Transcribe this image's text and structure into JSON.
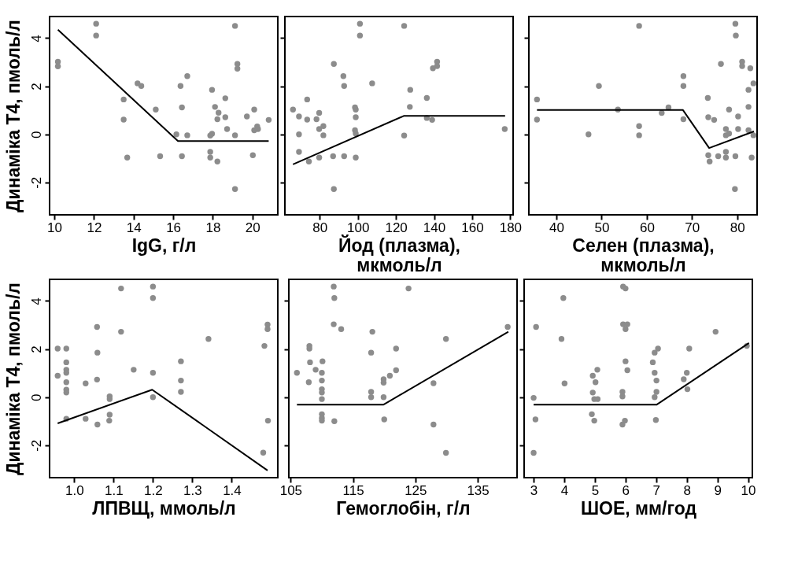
{
  "chart_data": [
    {
      "type": "scatter",
      "xlabel": "IgG, г/л",
      "ylabel": "Динаміка T4, пмоль/л",
      "xlim": [
        9.76,
        21.28
      ],
      "xticks": [
        10,
        12,
        14,
        16,
        18,
        20
      ],
      "ylim": [
        -3.35,
        4.9
      ],
      "yticks": [
        -2,
        0,
        2,
        4
      ],
      "series": [
        {
          "marker": "circle",
          "color": "#8c8c8c",
          "x": [
            10.18,
            10.18,
            12.11,
            12.11,
            13.5,
            13.5,
            13.68,
            14.2,
            14.39,
            15.12,
            15.34,
            16.16,
            16.37,
            16.44,
            16.44,
            16.71,
            16.71,
            17.87,
            17.96,
            17.96,
            17.87,
            17.87,
            18.11,
            18.29,
            18.23,
            18.23,
            18.63,
            18.63,
            18.72,
            19.12,
            19.12,
            19.12,
            19.24,
            19.24,
            19.72,
            20.09,
            20.02,
            20.09,
            20.24,
            20.28,
            20.82
          ],
          "values": [
            3.02,
            2.83,
            4.6,
            4.11,
            1.45,
            0.61,
            -0.97,
            2.12,
            2.01,
            1.03,
            -0.91,
            0,
            2.01,
            1.12,
            -0.91,
            2.42,
            -0.04,
            -0.05,
            0.02,
            1.85,
            -0.73,
            -0.97,
            1.14,
            0.9,
            0.63,
            -1.13,
            1.5,
            0.71,
            0.22,
            4.51,
            -0.04,
            -2.28,
            2.93,
            2.73,
            0.74,
            1.03,
            -0.87,
            0.17,
            0.33,
            0.22,
            0.6
          ]
        },
        {
          "type": "line",
          "color": "#000000",
          "x": [
            10.18,
            16.24,
            20.82
          ],
          "values": [
            4.35,
            -0.28,
            -0.28
          ]
        }
      ]
    },
    {
      "type": "scatter",
      "xlabel": "Йод (плазма), мкмоль/л",
      "tick_labels": "x",
      "xlim": [
        61.7,
        181.5
      ],
      "xticks": [
        80,
        100,
        120,
        140,
        160,
        180
      ],
      "ylim": [
        -3.35,
        4.9
      ],
      "yticks": [
        -2,
        0,
        2,
        4
      ],
      "series": [
        {
          "marker": "circle",
          "color": "#8c8c8c",
          "x": [
            65.95,
            69.1,
            69.1,
            69.1,
            73.4,
            73.4,
            74.3,
            78.3,
            79.7,
            79.7,
            79.7,
            81.9,
            81.9,
            87.0,
            87.4,
            87.4,
            92.4,
            92.8,
            92.8,
            98.5,
            98.9,
            98.9,
            98.5,
            98.9,
            98.9,
            101.1,
            101.1,
            107.5,
            124.3,
            124.3,
            127.5,
            127.3,
            136.2,
            136.2,
            139.0,
            139.4,
            141.6,
            141.6,
            177.1
          ],
          "values": [
            1.03,
            0.74,
            0,
            -0.73,
            1.45,
            0.61,
            -1.13,
            0.63,
            0.89,
            0.22,
            -0.97,
            0.34,
            -0.04,
            -0.91,
            2.93,
            -2.28,
            2.42,
            2.01,
            -0.91,
            1.12,
            1.03,
            0.71,
            0.17,
            0.03,
            -0.97,
            4.6,
            4.11,
            2.12,
            4.51,
            -0.05,
            1.85,
            1.14,
            1.51,
            0.68,
            0.6,
            2.75,
            3.02,
            2.84,
            0.22
          ]
        },
        {
          "type": "line",
          "color": "#000000",
          "x": [
            65.95,
            124.3,
            177.3
          ],
          "values": [
            -1.25,
            0.77,
            0.77
          ]
        }
      ]
    },
    {
      "type": "scatter",
      "xlabel": "Селен (плазма), мкмоль/л",
      "tick_labels": "x",
      "xlim": [
        33.9,
        84.4
      ],
      "xticks": [
        40,
        50,
        60,
        70,
        80
      ],
      "ylim": [
        -3.35,
        4.9
      ],
      "yticks": [
        -2,
        0,
        2,
        4
      ],
      "series": [
        {
          "marker": "circle",
          "color": "#8c8c8c",
          "x": [
            35.7,
            35.7,
            47.1,
            49.4,
            53.6,
            58.3,
            58.3,
            58.3,
            63.3,
            64.8,
            68.1,
            68.1,
            68.1,
            73.5,
            73.6,
            73.6,
            73.9,
            74.9,
            75.8,
            76.4,
            77.5,
            77.5,
            77.5,
            77.5,
            78.2,
            78.2,
            79.5,
            79.6,
            79.7,
            79.6,
            80.2,
            80.2,
            81.1,
            81.1,
            82.5,
            82.5,
            82.5,
            82.9,
            83.2,
            83.6,
            83.6
          ],
          "values": [
            0.61,
            1.45,
            0,
            2.01,
            1.03,
            4.51,
            0.34,
            -0.04,
            0.89,
            1.12,
            2.42,
            2.01,
            0.63,
            1.51,
            0.71,
            -0.87,
            -1.13,
            0.6,
            -0.91,
            2.93,
            0.22,
            -0.04,
            -0.73,
            -0.97,
            0.03,
            1.03,
            -2.28,
            4.6,
            4.11,
            -0.91,
            0.74,
            0.22,
            3.02,
            2.84,
            1.85,
            1.14,
            0.17,
            2.75,
            -0.97,
            2.12,
            -0.04
          ]
        },
        {
          "type": "line",
          "color": "#000000",
          "x": [
            35.7,
            68.0,
            73.8,
            83.7
          ],
          "values": [
            1.01,
            1.01,
            -0.57,
            0.12
          ]
        }
      ]
    },
    {
      "type": "scatter",
      "xlabel": "ЛПВЩ, ммоль/л",
      "ylabel": "Динаміка T4, пмоль/л",
      "xlim": [
        0.9375,
        1.517
      ],
      "xticks": [
        {
          "value": 1,
          "label": "1.0"
        },
        1.1,
        1.2,
        1.3,
        1.4
      ],
      "ylim": [
        -3.35,
        4.9
      ],
      "yticks": [
        -2,
        0,
        2,
        4
      ],
      "series": [
        {
          "marker": "circle",
          "color": "#8c8c8c",
          "x": [
            0.958,
            0.958,
            0.98,
            0.98,
            0.98,
            0.98,
            0.98,
            0.98,
            0.98,
            0.98,
            1.029,
            1.029,
            1.058,
            1.059,
            1.058,
            1.059,
            1.09,
            1.09,
            1.09,
            1.089,
            1.119,
            1.119,
            1.151,
            1.2,
            1.2,
            1.2,
            1.2,
            1.271,
            1.271,
            1.271,
            1.341,
            1.48,
            1.483,
            1.491,
            1.491,
            1.492
          ],
          "values": [
            2.02,
            0.89,
            2.02,
            1.45,
            1.14,
            1.01,
            0.62,
            0.31,
            0.19,
            -0.9,
            0.57,
            -0.9,
            2.92,
            1.85,
            0.73,
            -1.14,
            0.03,
            -0.08,
            -0.73,
            -0.98,
            4.52,
            2.72,
            1.14,
            4.6,
            4.12,
            1.01,
            0,
            1.49,
            0.69,
            0.22,
            2.42,
            -2.31,
            2.13,
            3.02,
            2.83,
            -0.98
          ]
        },
        {
          "type": "line",
          "color": "#000000",
          "x": [
            0.958,
            1.198,
            1.491
          ],
          "values": [
            -1.09,
            0.31,
            -3.05
          ]
        }
      ]
    },
    {
      "type": "scatter",
      "xlabel": "Гемоглобін, г/л",
      "tick_labels": "x",
      "xlim": [
        104.7,
        141.3
      ],
      "xticks": [
        105,
        115,
        125,
        135
      ],
      "ylim": [
        -3.35,
        4.9
      ],
      "yticks": [
        -2,
        0,
        2,
        4
      ],
      "series": [
        {
          "marker": "circle",
          "color": "#8c8c8c",
          "x": [
            106.0,
            107.9,
            108.0,
            108.0,
            108.1,
            109.0,
            110.0,
            110.1,
            110.0,
            110.0,
            110.0,
            110.0,
            110.0,
            110.0,
            110.0,
            111.9,
            112.0,
            111.9,
            112.0,
            113.1,
            118.1,
            117.9,
            117.9,
            117.9,
            119.9,
            119.9,
            119.9,
            120.0,
            120.9,
            121.9,
            121.9,
            123.9,
            127.9,
            127.9,
            129.9,
            129.9,
            139.8
          ],
          "values": [
            1.01,
            0.62,
            2.13,
            2.02,
            1.45,
            1.14,
            1.01,
            1.49,
            0.69,
            0.33,
            0.19,
            -0.08,
            -0.71,
            -0.87,
            -0.98,
            4.6,
            4.12,
            3.03,
            -1.0,
            2.83,
            2.72,
            1.85,
            0.22,
            0,
            0.74,
            0.6,
            0,
            -0.93,
            0.89,
            2.02,
            1.12,
            4.52,
            0.58,
            -1.14,
            2.42,
            -2.32,
            2.92
          ]
        },
        {
          "type": "line",
          "color": "#000000",
          "x": [
            106.0,
            119.9,
            139.9
          ],
          "values": [
            -0.31,
            -0.31,
            2.72
          ]
        }
      ]
    },
    {
      "type": "scatter",
      "xlabel": "ШОЕ, мм/год",
      "tick_labels": "x",
      "xlim": [
        2.69,
        10.14
      ],
      "xticks": [
        3,
        4,
        5,
        6,
        7,
        8,
        9,
        10
      ],
      "ylim": [
        -3.35,
        4.9
      ],
      "yticks": [
        -2,
        0,
        2,
        4
      ],
      "series": [
        {
          "marker": "circle",
          "color": "#8c8c8c",
          "x": [
            3.0,
            3.08,
            3.06,
            3.0,
            3.91,
            3.97,
            4.01,
            4.93,
            5.08,
            5.02,
            4.93,
            4.98,
            5.09,
            4.9,
            4.98,
            5.92,
            6.0,
            5.92,
            6.06,
            6.0,
            6.0,
            6.06,
            5.9,
            5.9,
            5.98,
            5.9,
            6.95,
            7.06,
            6.89,
            6.95,
            7.01,
            7.01,
            6.95,
            6.99,
            7.9,
            8.0,
            8.08,
            8.02,
            8.94,
            9.96
          ],
          "values": [
            -0.03,
            2.92,
            -0.93,
            -2.32,
            2.42,
            4.12,
            0.57,
            0.89,
            1.14,
            0.62,
            0.19,
            -0.08,
            -0.08,
            -0.71,
            -0.98,
            4.6,
            4.52,
            3.03,
            3.03,
            2.83,
            1.49,
            1.12,
            0.22,
            0.03,
            -0.98,
            -1.14,
            1.85,
            2.02,
            1.45,
            1.01,
            0.69,
            0.22,
            0,
            -0.95,
            0.74,
            1.01,
            2.02,
            0.33,
            2.72,
            2.13
          ]
        },
        {
          "type": "line",
          "color": "#000000",
          "x": [
            3.0,
            7.02,
            10.03
          ],
          "values": [
            -0.31,
            -0.31,
            2.25
          ]
        }
      ]
    }
  ]
}
